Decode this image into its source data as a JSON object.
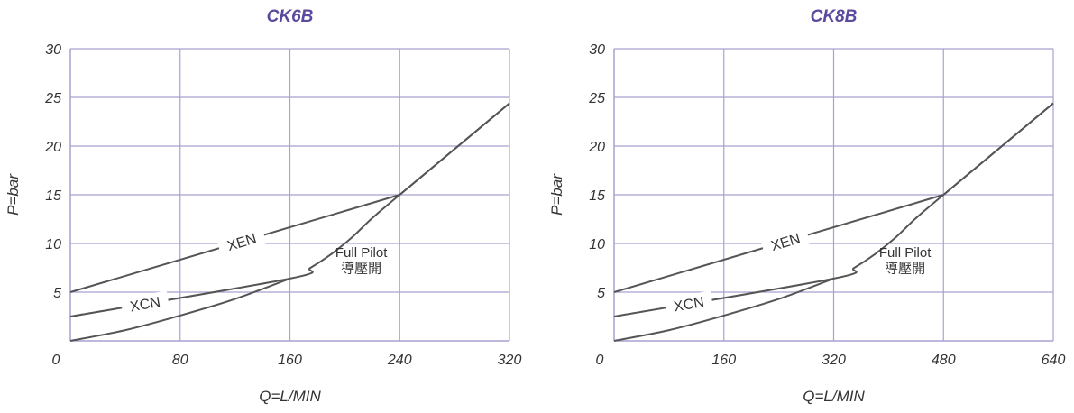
{
  "chart_data": [
    {
      "type": "line",
      "title": "CK6B",
      "xlabel": "Q=L/MIN",
      "ylabel": "P=bar",
      "xlim": [
        0,
        320
      ],
      "ylim": [
        0,
        30
      ],
      "xticks": [
        0,
        80,
        160,
        240,
        320
      ],
      "yticks": [
        5,
        10,
        15,
        20,
        25,
        30
      ],
      "grid": true,
      "title_color": "#5b4a9e",
      "grid_color": "#a7a2d2",
      "line_color": "#555555",
      "series": [
        {
          "name": "XEN",
          "x": [
            0,
            240,
            320
          ],
          "y": [
            5,
            15,
            24.4
          ]
        },
        {
          "name": "XCN",
          "x": [
            0,
            160,
            175,
            190,
            205,
            220,
            240,
            320
          ],
          "y": [
            2.5,
            6.4,
            7.5,
            8.9,
            10.6,
            12.6,
            15,
            24.4
          ]
        },
        {
          "name": "",
          "x": [
            0,
            40,
            80,
            120,
            160
          ],
          "y": [
            0,
            1.1,
            2.6,
            4.3,
            6.4
          ]
        }
      ],
      "annotations": [
        {
          "text": "Full Pilot",
          "x": 212,
          "y": 8.6
        },
        {
          "text": "導壓開",
          "x": 212,
          "y": 7.0
        }
      ]
    },
    {
      "type": "line",
      "title": "CK8B",
      "xlabel": "Q=L/MIN",
      "ylabel": "P=bar",
      "xlim": [
        0,
        640
      ],
      "ylim": [
        0,
        30
      ],
      "xticks": [
        0,
        160,
        320,
        480,
        640
      ],
      "yticks": [
        5,
        10,
        15,
        20,
        25,
        30
      ],
      "grid": true,
      "title_color": "#5b4a9e",
      "grid_color": "#a7a2d2",
      "line_color": "#555555",
      "series": [
        {
          "name": "XEN",
          "x": [
            0,
            480,
            640
          ],
          "y": [
            5,
            15,
            24.4
          ]
        },
        {
          "name": "XCN",
          "x": [
            0,
            320,
            350,
            380,
            410,
            440,
            480,
            640
          ],
          "y": [
            2.5,
            6.4,
            7.5,
            8.9,
            10.6,
            12.6,
            15,
            24.4
          ]
        },
        {
          "name": "",
          "x": [
            0,
            80,
            160,
            240,
            320
          ],
          "y": [
            0,
            1.1,
            2.6,
            4.3,
            6.4
          ]
        }
      ],
      "annotations": [
        {
          "text": "Full Pilot",
          "x": 424,
          "y": 8.6
        },
        {
          "text": "導壓開",
          "x": 424,
          "y": 7.0
        }
      ]
    }
  ]
}
